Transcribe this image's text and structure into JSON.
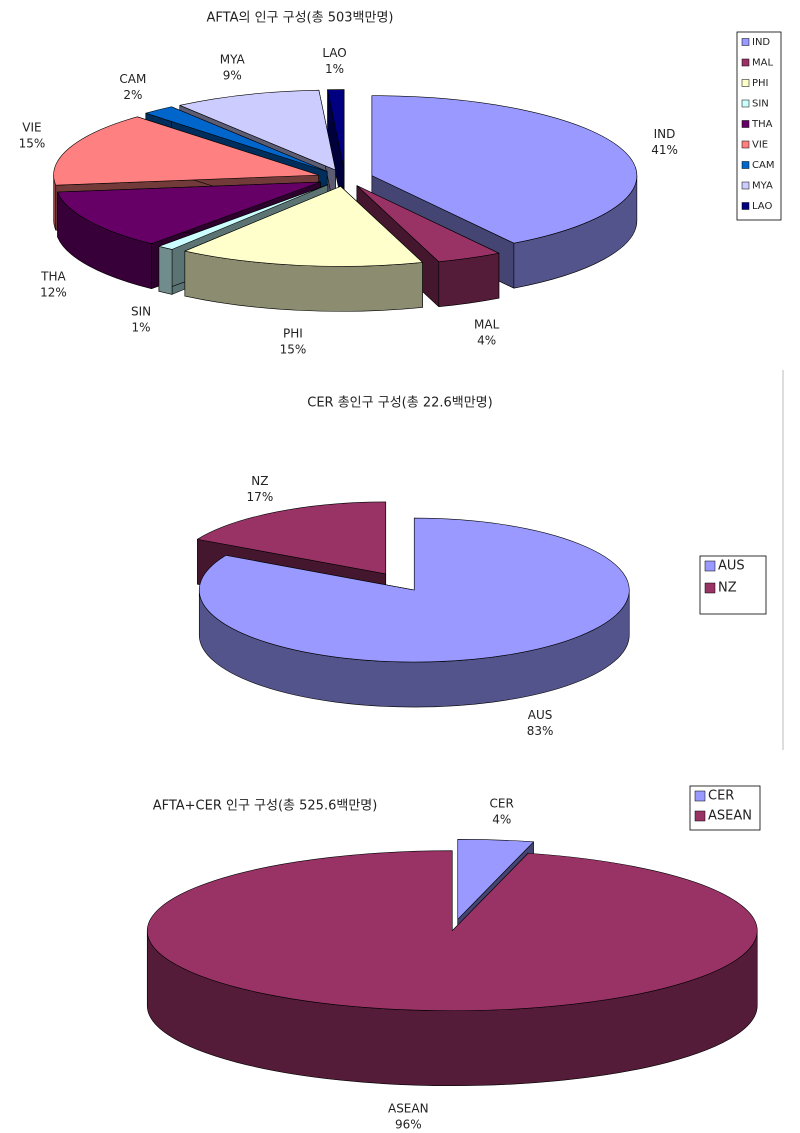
{
  "chart_data": [
    {
      "type": "pie",
      "title": "AFTA의 인구 구성(총 503백만명)",
      "categories": [
        "IND",
        "MAL",
        "PHI",
        "SIN",
        "THA",
        "VIE",
        "CAM",
        "MYA",
        "LAO"
      ],
      "values": [
        41,
        4,
        15,
        1,
        12,
        15,
        2,
        9,
        1
      ],
      "value_labels": [
        "41%",
        "4%",
        "15%",
        "1%",
        "12%",
        "15%",
        "2%",
        "9%",
        "1%"
      ],
      "colors": [
        "#9999ff",
        "#993366",
        "#ffffcc",
        "#ccffff",
        "#660066",
        "#ff8080",
        "#0066cc",
        "#ccccff",
        "#000080"
      ],
      "legend": "right"
    },
    {
      "type": "pie",
      "title": "CER 총인구 구성(총 22.6백만명)",
      "categories": [
        "AUS",
        "NZ"
      ],
      "values": [
        83,
        17
      ],
      "value_labels": [
        "83%",
        "17%"
      ],
      "colors": [
        "#9999ff",
        "#993366"
      ],
      "legend": "right"
    },
    {
      "type": "pie",
      "title": "AFTA+CER 인구 구성(총 525.6백만명)",
      "categories": [
        "CER",
        "ASEAN"
      ],
      "values": [
        4,
        96
      ],
      "value_labels": [
        "4%",
        "96%"
      ],
      "colors": [
        "#9999ff",
        "#993366"
      ],
      "legend": "right"
    }
  ]
}
